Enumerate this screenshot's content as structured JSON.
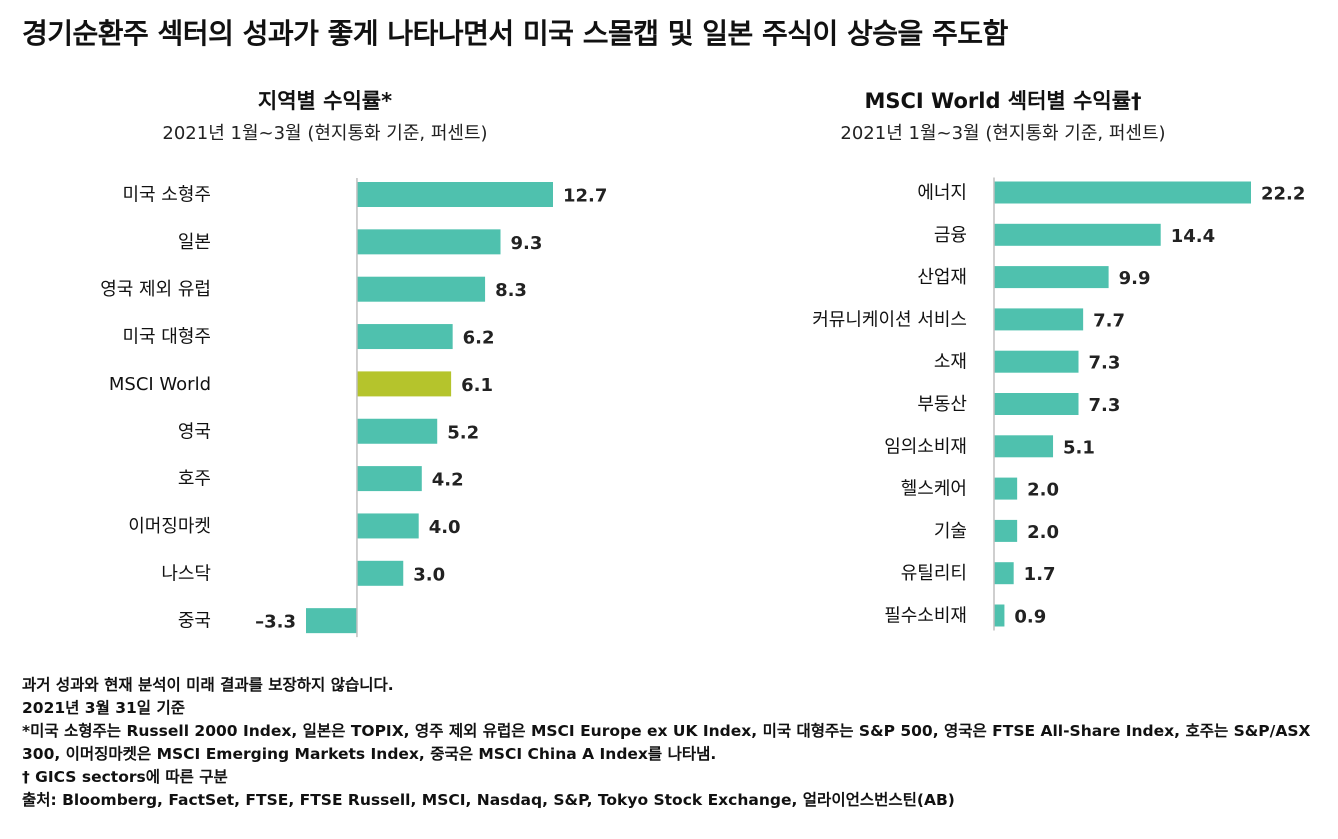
{
  "page_title": "경기순환주 섹터의 성과가 좋게 나타나면서 미국 스몰캡 및 일본 주식이 상승을 주도함",
  "colors": {
    "bar": "#4fc1ae",
    "highlight": "#b5c42c",
    "axis": "#bfbfbf"
  },
  "chart_data": [
    {
      "type": "bar",
      "orientation": "horizontal",
      "title": "지역별 수익률*",
      "subtitle": "2021년 1월~3월 (현지통화 기준, 퍼센트)",
      "categories": [
        "미국 소형주",
        "일본",
        "영국 제외 유럽",
        "미국 대형주",
        "MSCI World",
        "영국",
        "호주",
        "이머징마켓",
        "나스닥",
        "중국"
      ],
      "values": [
        12.7,
        9.3,
        8.3,
        6.2,
        6.1,
        5.2,
        4.2,
        4.0,
        3.0,
        -3.3
      ],
      "value_labels": [
        "12.7",
        "9.3",
        "8.3",
        "6.2",
        "6.1",
        "5.2",
        "4.2",
        "4.0",
        "3.0",
        "–3.3"
      ],
      "highlight_category": "MSCI World",
      "xlim": [
        -3.3,
        12.7
      ]
    },
    {
      "type": "bar",
      "orientation": "horizontal",
      "title": "MSCI  World 섹터별 수익률†",
      "subtitle": "2021년 1월~3월 (현지통화 기준, 퍼센트)",
      "categories": [
        "에너지",
        "금융",
        "산업재",
        "커뮤니케이션 서비스",
        "소재",
        "부동산",
        "임의소비재",
        "헬스케어",
        "기술",
        "유틸리티",
        "필수소비재"
      ],
      "values": [
        22.2,
        14.4,
        9.9,
        7.7,
        7.3,
        7.3,
        5.1,
        2.0,
        2.0,
        1.7,
        0.9
      ],
      "value_labels": [
        "22.2",
        "14.4",
        "9.9",
        "7.7",
        "7.3",
        "7.3",
        "5.1",
        "2.0",
        "2.0",
        "1.7",
        "0.9"
      ],
      "xlim": [
        0,
        22.2
      ]
    }
  ],
  "footnotes": [
    "과거 성과와 현재 분석이 미래 결과를 보장하지 않습니다.",
    "2021년 3월 31일 기준",
    "*미국 소형주는 Russell 2000 Index, 일본은 TOPIX, 영주 제외 유럽은 MSCI Europe ex UK Index, 미국 대형주는 S&P 500, 영국은 FTSE All-Share Index, 호주는 S&P/ASX 300, 이머징마켓은 MSCI Emerging Markets Index, 중국은 MSCI China A Index를 나타냄.",
    "† GICS sectors에 따른 구분",
    "출처: Bloomberg, FactSet, FTSE, FTSE Russell, MSCI, Nasdaq, S&P, Tokyo Stock Exchange, 얼라이언스번스틴(AB)"
  ]
}
